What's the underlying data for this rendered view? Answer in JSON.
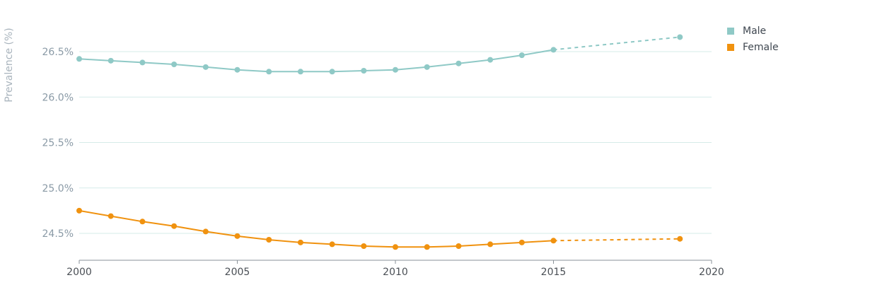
{
  "chart_data": {
    "type": "line",
    "xlabel": "",
    "ylabel": "Prevalence (%)",
    "xlim": [
      2000,
      2020
    ],
    "ylim": [
      24.2,
      26.7
    ],
    "x_ticks": [
      "2000",
      "2005",
      "2010",
      "2015",
      "2020"
    ],
    "y_ticks": [
      {
        "value": 24.5,
        "label": "24.5%"
      },
      {
        "value": 25.0,
        "label": "25.0%"
      },
      {
        "value": 25.5,
        "label": "25.5%"
      },
      {
        "value": 26.0,
        "label": "26.0%"
      },
      {
        "value": 26.5,
        "label": "26.5%"
      }
    ],
    "grid": "horizontal",
    "legend_position": "top-right",
    "series": [
      {
        "name": "Male",
        "color": "#8fc9c6",
        "x": [
          2000,
          2001,
          2002,
          2003,
          2004,
          2005,
          2006,
          2007,
          2008,
          2009,
          2010,
          2011,
          2012,
          2013,
          2014,
          2015
        ],
        "values": [
          26.42,
          26.4,
          26.38,
          26.36,
          26.33,
          26.3,
          26.28,
          26.28,
          26.28,
          26.29,
          26.3,
          26.33,
          26.37,
          26.41,
          26.46,
          26.52
        ],
        "projection": {
          "x": [
            2015,
            2019
          ],
          "values": [
            26.52,
            26.66
          ]
        }
      },
      {
        "name": "Female",
        "color": "#f0920f",
        "x": [
          2000,
          2001,
          2002,
          2003,
          2004,
          2005,
          2006,
          2007,
          2008,
          2009,
          2010,
          2011,
          2012,
          2013,
          2014,
          2015
        ],
        "values": [
          24.75,
          24.69,
          24.63,
          24.58,
          24.52,
          24.47,
          24.43,
          24.4,
          24.38,
          24.36,
          24.35,
          24.35,
          24.36,
          24.38,
          24.4,
          24.42
        ],
        "projection": {
          "x": [
            2015,
            2019
          ],
          "values": [
            24.42,
            24.44
          ]
        }
      }
    ]
  }
}
